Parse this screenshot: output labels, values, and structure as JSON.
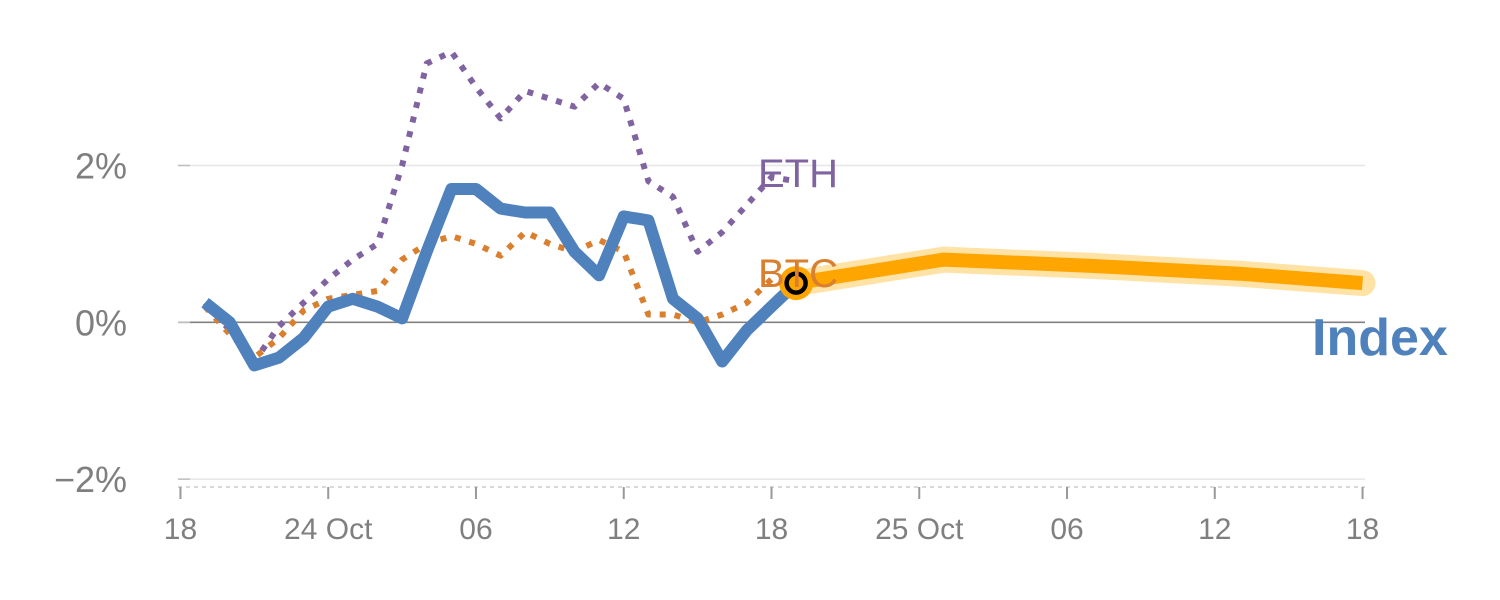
{
  "chart_data": {
    "type": "line",
    "x_ticks": [
      "18",
      "24 Oct",
      "06",
      "12",
      "18",
      "25 Oct",
      "06",
      "12",
      "18"
    ],
    "y_ticks": [
      {
        "value": 2,
        "label": "2%"
      },
      {
        "value": 0,
        "label": "0%"
      },
      {
        "value": -2,
        "label": "−2%"
      }
    ],
    "ylim": [
      -2.1,
      3.6
    ],
    "xlim": [
      -0.1,
      48.1
    ],
    "series": [
      {
        "name": "ETH",
        "style": "dotted",
        "color": "#8064a2",
        "x": [
          1,
          2,
          3,
          4,
          5,
          6,
          7,
          8,
          9,
          10,
          11,
          12,
          13,
          14,
          15,
          16,
          17,
          18,
          19,
          20,
          21,
          22,
          23,
          24,
          25
        ],
        "values": [
          0.25,
          -0.1,
          -0.5,
          -0.05,
          0.25,
          0.55,
          0.8,
          1.0,
          2.0,
          3.3,
          3.45,
          3.0,
          2.6,
          2.95,
          2.85,
          2.75,
          3.05,
          2.85,
          1.8,
          1.6,
          0.9,
          1.15,
          1.5,
          1.85,
          1.8
        ]
      },
      {
        "name": "BTC",
        "style": "dotted",
        "color": "#d97f2e",
        "x": [
          1,
          2,
          3,
          4,
          5,
          6,
          7,
          8,
          9,
          10,
          11,
          12,
          13,
          14,
          15,
          16,
          17,
          18,
          19,
          20,
          21,
          22,
          23,
          24,
          25
        ],
        "values": [
          0.2,
          -0.15,
          -0.45,
          -0.2,
          0.15,
          0.3,
          0.35,
          0.4,
          0.8,
          1.0,
          1.1,
          1.0,
          0.85,
          1.15,
          1.0,
          0.9,
          1.05,
          0.9,
          0.1,
          0.1,
          0.0,
          0.1,
          0.25,
          0.55,
          0.55
        ]
      },
      {
        "name": "Index",
        "style": "solid",
        "color": "#4f81bd",
        "x": [
          1,
          2,
          3,
          4,
          5,
          6,
          7,
          8,
          9,
          10,
          11,
          12,
          13,
          14,
          15,
          16,
          17,
          18,
          19,
          20,
          21,
          22,
          23,
          24,
          25
        ],
        "values": [
          0.25,
          0.0,
          -0.55,
          -0.45,
          -0.2,
          0.2,
          0.3,
          0.2,
          0.05,
          0.9,
          1.7,
          1.7,
          1.45,
          1.4,
          1.4,
          0.9,
          0.6,
          1.35,
          1.3,
          0.3,
          0.05,
          -0.5,
          -0.1,
          0.2,
          0.5
        ]
      },
      {
        "name": "Index forecast",
        "style": "band",
        "color": "#ffa500",
        "x": [
          25,
          31,
          37,
          43,
          48
        ],
        "values": [
          0.5,
          0.8,
          0.72,
          0.62,
          0.5
        ]
      }
    ],
    "grid": true,
    "labels": {
      "eth": "ETH",
      "btc": "BTC",
      "index": "Index"
    },
    "colors": {
      "eth": "#8064a2",
      "btc": "#d97f2e",
      "index": "#4f81bd",
      "forecast": "#ffa500",
      "forecast_band": "#ffd580",
      "axis_text": "#7f7f7f",
      "grid": "#e6e6e6",
      "zero_line": "#808080"
    }
  }
}
